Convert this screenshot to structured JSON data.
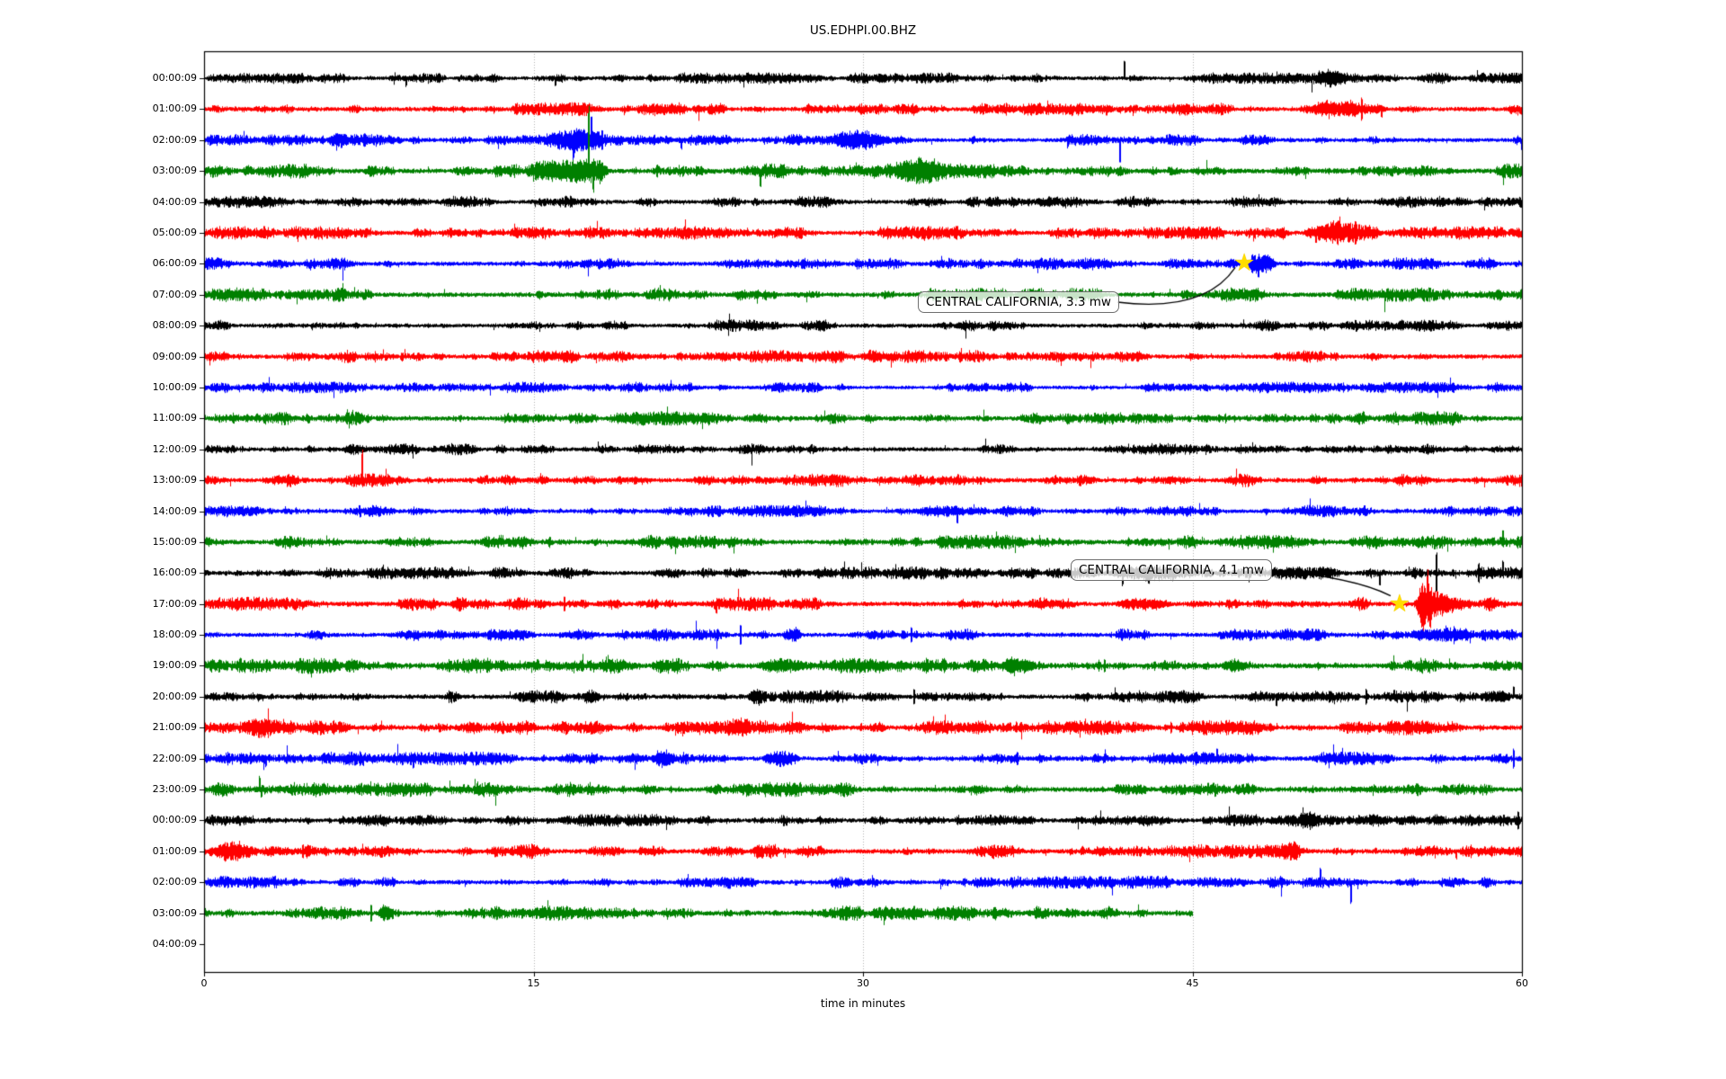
{
  "title": "US.EDHPI.00.BHZ",
  "chart_data": {
    "type": "line",
    "subtype": "seismogram-helicorder",
    "title": "US.EDHPI.00.BHZ",
    "xlabel": "time in minutes",
    "x_range": [
      0,
      60
    ],
    "x_ticks": [
      0,
      15,
      30,
      45,
      60
    ],
    "grid_minutes": [
      15,
      30,
      45
    ],
    "grid_color": "#b0b0b0",
    "background": "#ffffff",
    "trace_color_cycle": [
      "#000000",
      "#ff0000",
      "#0000ff",
      "#008000"
    ],
    "star_color": "#ffdd00",
    "rows": [
      {
        "label": "00:00:09",
        "color": "#000000",
        "end_minute": 60,
        "base_amp": 3.2,
        "events": [
          {
            "k": "spike_down",
            "t": 9.2,
            "a": 10
          },
          {
            "k": "spike_down",
            "t": 16.0,
            "a": 9
          },
          {
            "k": "spike_up",
            "t": 41.9,
            "a": 20
          },
          {
            "k": "burst",
            "t": 50.5,
            "d": 1.6,
            "a": 4
          },
          {
            "k": "spike",
            "t": 51.2,
            "a": 9
          }
        ]
      },
      {
        "label": "01:00:09",
        "color": "#ff0000",
        "end_minute": 60,
        "base_amp": 3.8,
        "events": [
          {
            "k": "spike_down",
            "t": 39.5,
            "a": 8
          },
          {
            "k": "burst",
            "t": 49.8,
            "d": 3.8,
            "a": 6
          },
          {
            "k": "spike",
            "t": 52.7,
            "a": 15
          },
          {
            "k": "spike_down",
            "t": 53.6,
            "a": 10
          }
        ]
      },
      {
        "label": "02:00:09",
        "color": "#0000ff",
        "end_minute": 60,
        "base_amp": 3.4,
        "events": [
          {
            "k": "burst",
            "t": 5.6,
            "d": 0.9,
            "a": 5
          },
          {
            "k": "spike",
            "t": 7.3,
            "a": 9
          },
          {
            "k": "burst",
            "t": 15.4,
            "d": 2.9,
            "a": 8
          },
          {
            "k": "spike_down",
            "t": 16.8,
            "a": 22
          },
          {
            "k": "spike_up",
            "t": 17.6,
            "a": 27
          },
          {
            "k": "spike",
            "t": 18.1,
            "a": 13
          },
          {
            "k": "spike_down",
            "t": 21.7,
            "a": 11
          },
          {
            "k": "burst",
            "t": 28.3,
            "d": 3.0,
            "a": 5
          },
          {
            "k": "spike",
            "t": 30.0,
            "a": 9
          },
          {
            "k": "spike_down",
            "t": 39.3,
            "a": 9
          },
          {
            "k": "spike_down",
            "t": 41.7,
            "a": 25
          }
        ]
      },
      {
        "label": "03:00:09",
        "color": "#008000",
        "end_minute": 60,
        "base_amp": 4.2,
        "events": [
          {
            "k": "burst",
            "t": 14.9,
            "d": 2.3,
            "a": 9
          },
          {
            "k": "burst",
            "t": 16.8,
            "d": 1.6,
            "a": 11
          },
          {
            "k": "spike_up",
            "t": 17.5,
            "a": 80
          },
          {
            "k": "spike_down",
            "t": 17.7,
            "a": 24
          },
          {
            "k": "spike",
            "t": 20.6,
            "a": 8
          },
          {
            "k": "spike_down",
            "t": 25.3,
            "a": 17
          },
          {
            "k": "burst",
            "t": 31.4,
            "d": 2.4,
            "a": 8
          }
        ]
      },
      {
        "label": "04:00:09",
        "color": "#000000",
        "end_minute": 60,
        "base_amp": 3.4,
        "events": []
      },
      {
        "label": "05:00:09",
        "color": "#ff0000",
        "end_minute": 60,
        "base_amp": 3.8,
        "events": [
          {
            "k": "burst",
            "t": 50.0,
            "d": 3.6,
            "a": 9
          },
          {
            "k": "spike_down",
            "t": 50.6,
            "a": 13
          },
          {
            "k": "spike",
            "t": 51.6,
            "a": 15
          },
          {
            "k": "spike",
            "t": 52.4,
            "a": 14
          }
        ]
      },
      {
        "label": "06:00:09",
        "color": "#0000ff",
        "end_minute": 60,
        "base_amp": 3.6,
        "events": [
          {
            "k": "burst",
            "t": 47.5,
            "d": 1.3,
            "a": 9
          },
          {
            "k": "spike",
            "t": 47.7,
            "a": 12
          },
          {
            "k": "spike_down",
            "t": 48.0,
            "a": 17
          }
        ]
      },
      {
        "label": "07:00:09",
        "color": "#008000",
        "end_minute": 60,
        "base_amp": 4.0,
        "events": []
      },
      {
        "label": "08:00:09",
        "color": "#000000",
        "end_minute": 60,
        "base_amp": 3.4,
        "events": []
      },
      {
        "label": "09:00:09",
        "color": "#ff0000",
        "end_minute": 60,
        "base_amp": 3.8,
        "events": []
      },
      {
        "label": "10:00:09",
        "color": "#0000ff",
        "end_minute": 60,
        "base_amp": 3.2,
        "events": []
      },
      {
        "label": "11:00:09",
        "color": "#008000",
        "end_minute": 60,
        "base_amp": 4.0,
        "events": []
      },
      {
        "label": "12:00:09",
        "color": "#000000",
        "end_minute": 60,
        "base_amp": 3.4,
        "events": []
      },
      {
        "label": "13:00:09",
        "color": "#ff0000",
        "end_minute": 60,
        "base_amp": 3.8,
        "events": [
          {
            "k": "spike_up",
            "t": 7.2,
            "a": 34
          }
        ]
      },
      {
        "label": "14:00:09",
        "color": "#0000ff",
        "end_minute": 60,
        "base_amp": 3.4,
        "events": []
      },
      {
        "label": "15:00:09",
        "color": "#008000",
        "end_minute": 60,
        "base_amp": 4.0,
        "events": [
          {
            "k": "spike_up",
            "t": 59.1,
            "a": 13
          }
        ]
      },
      {
        "label": "16:00:09",
        "color": "#000000",
        "end_minute": 60,
        "base_amp": 3.6,
        "events": [
          {
            "k": "burst",
            "t": 41.0,
            "d": 4.3,
            "a": 6
          },
          {
            "k": "spike_down",
            "t": 41.8,
            "a": 15
          },
          {
            "k": "spike_down",
            "t": 43.0,
            "a": 13
          },
          {
            "k": "spike_down",
            "t": 53.5,
            "a": 15
          },
          {
            "k": "spike",
            "t": 56.1,
            "a": 25
          },
          {
            "k": "spike",
            "t": 58.0,
            "a": 12
          },
          {
            "k": "spike_up",
            "t": 59.1,
            "a": 14
          }
        ]
      },
      {
        "label": "17:00:09",
        "color": "#ff0000",
        "end_minute": 60,
        "base_amp": 4.0,
        "events": [
          {
            "k": "burst",
            "t": 11.2,
            "d": 0.8,
            "a": 5
          },
          {
            "k": "spike",
            "t": 16.4,
            "a": 10
          },
          {
            "k": "spike_down",
            "t": 23.3,
            "a": 11
          },
          {
            "k": "burst",
            "t": 41.5,
            "d": 2.5,
            "a": 5
          },
          {
            "k": "bigburst",
            "t": 55.0,
            "d": 2.8,
            "a": 24
          },
          {
            "k": "spike_up",
            "t": 55.7,
            "a": 38
          },
          {
            "k": "spike_down",
            "t": 55.8,
            "a": 27
          }
        ]
      },
      {
        "label": "18:00:09",
        "color": "#0000ff",
        "end_minute": 60,
        "base_amp": 3.6,
        "events": [
          {
            "k": "spike",
            "t": 24.4,
            "a": 14
          },
          {
            "k": "burst",
            "t": 26.3,
            "d": 0.9,
            "a": 6
          },
          {
            "k": "spike",
            "t": 32.2,
            "a": 9
          },
          {
            "k": "burst",
            "t": 54.8,
            "d": 3.2,
            "a": 5
          }
        ]
      },
      {
        "label": "19:00:09",
        "color": "#008000",
        "end_minute": 60,
        "base_amp": 4.4,
        "events": [
          {
            "k": "burst",
            "t": 25.2,
            "d": 2.2,
            "a": 6
          },
          {
            "k": "burst",
            "t": 36.3,
            "d": 1.6,
            "a": 6
          },
          {
            "k": "spike",
            "t": 41.0,
            "a": 9
          },
          {
            "k": "burst",
            "t": 46.3,
            "d": 1.2,
            "a": 5
          }
        ]
      },
      {
        "label": "20:00:09",
        "color": "#000000",
        "end_minute": 60,
        "base_amp": 3.8,
        "events": [
          {
            "k": "burst",
            "t": 17.2,
            "d": 0.8,
            "a": 6
          },
          {
            "k": "burst",
            "t": 24.7,
            "d": 1.0,
            "a": 4
          },
          {
            "k": "spike",
            "t": 32.3,
            "a": 10
          },
          {
            "k": "spike_down",
            "t": 48.8,
            "a": 11
          },
          {
            "k": "spike",
            "t": 52.9,
            "a": 10
          },
          {
            "k": "burst",
            "t": 58.3,
            "d": 1.2,
            "a": 5
          },
          {
            "k": "spike_up",
            "t": 59.6,
            "a": 11
          }
        ]
      },
      {
        "label": "21:00:09",
        "color": "#ff0000",
        "end_minute": 60,
        "base_amp": 4.2,
        "events": [
          {
            "k": "burst",
            "t": 2.0,
            "d": 1.3,
            "a": 4
          },
          {
            "k": "burst",
            "t": 23.8,
            "d": 1.0,
            "a": 4
          },
          {
            "k": "spike",
            "t": 44.0,
            "a": 7
          }
        ]
      },
      {
        "label": "22:00:09",
        "color": "#0000ff",
        "end_minute": 60,
        "base_amp": 3.8,
        "events": [
          {
            "k": "spike_down",
            "t": 2.8,
            "a": 10
          },
          {
            "k": "spike",
            "t": 7.1,
            "a": 9
          },
          {
            "k": "spike_down",
            "t": 9.5,
            "a": 12
          },
          {
            "k": "spike",
            "t": 12.4,
            "a": 10
          },
          {
            "k": "burst",
            "t": 20.3,
            "d": 1.2,
            "a": 6
          },
          {
            "k": "burst",
            "t": 25.4,
            "d": 1.7,
            "a": 7
          },
          {
            "k": "spike",
            "t": 37.0,
            "a": 8
          },
          {
            "k": "spike_up",
            "t": 46.1,
            "a": 11
          },
          {
            "k": "spike",
            "t": 59.6,
            "a": 12
          }
        ]
      },
      {
        "label": "23:00:09",
        "color": "#008000",
        "end_minute": 60,
        "base_amp": 4.2,
        "events": [
          {
            "k": "spike_up",
            "t": 2.5,
            "a": 16
          },
          {
            "k": "spike_down",
            "t": 2.6,
            "a": 10
          }
        ]
      },
      {
        "label": "00:00:09",
        "color": "#000000",
        "end_minute": 60,
        "base_amp": 3.6,
        "events": [
          {
            "k": "burst",
            "t": 49.8,
            "d": 1.2,
            "a": 4
          },
          {
            "k": "spike",
            "t": 59.8,
            "a": 11
          }
        ]
      },
      {
        "label": "01:00:09",
        "color": "#ff0000",
        "end_minute": 60,
        "base_amp": 4.0,
        "events": [
          {
            "k": "burst",
            "t": 0.3,
            "d": 2.2,
            "a": 7
          },
          {
            "k": "spike",
            "t": 1.2,
            "a": 11
          },
          {
            "k": "spike",
            "t": 4.5,
            "a": 9
          },
          {
            "k": "spike",
            "t": 14.9,
            "a": 11
          },
          {
            "k": "burst",
            "t": 49.0,
            "d": 0.9,
            "a": 6
          },
          {
            "k": "spike_down",
            "t": 57.0,
            "a": 9
          },
          {
            "k": "spike",
            "t": 58.6,
            "a": 7
          }
        ]
      },
      {
        "label": "02:00:09",
        "color": "#0000ff",
        "end_minute": 60,
        "base_amp": 3.6,
        "events": [
          {
            "k": "spike_up",
            "t": 50.8,
            "a": 17
          },
          {
            "k": "spike_down",
            "t": 52.2,
            "a": 25
          }
        ]
      },
      {
        "label": "03:00:09",
        "color": "#008000",
        "end_minute": 45,
        "base_amp": 4.2,
        "events": [
          {
            "k": "spike",
            "t": 7.6,
            "a": 12
          },
          {
            "k": "burst",
            "t": 7.9,
            "d": 0.7,
            "a": 7
          },
          {
            "k": "spike",
            "t": 15.4,
            "a": 6
          }
        ]
      },
      {
        "label": "04:00:09",
        "color": "#000000",
        "end_minute": 0,
        "base_amp": 0,
        "events": []
      }
    ],
    "annotations": [
      {
        "text": "CENTRAL CALIFORNIA, 3.3 mw",
        "row_index": 6,
        "star_minute": 47.36
      },
      {
        "text": "CENTRAL CALIFORNIA, 4.1 mw",
        "row_index": 17,
        "star_minute": 54.43
      }
    ]
  }
}
